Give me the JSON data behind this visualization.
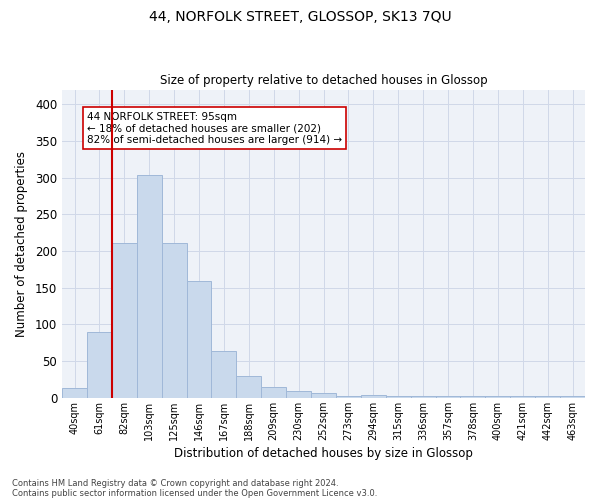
{
  "title": "44, NORFOLK STREET, GLOSSOP, SK13 7QU",
  "subtitle": "Size of property relative to detached houses in Glossop",
  "xlabel": "Distribution of detached houses by size in Glossop",
  "ylabel": "Number of detached properties",
  "categories": [
    "40sqm",
    "61sqm",
    "82sqm",
    "103sqm",
    "125sqm",
    "146sqm",
    "167sqm",
    "188sqm",
    "209sqm",
    "230sqm",
    "252sqm",
    "273sqm",
    "294sqm",
    "315sqm",
    "336sqm",
    "357sqm",
    "378sqm",
    "400sqm",
    "421sqm",
    "442sqm",
    "463sqm"
  ],
  "values": [
    14,
    90,
    211,
    303,
    211,
    159,
    64,
    30,
    15,
    9,
    6,
    2,
    4,
    2,
    3,
    3,
    2,
    3,
    2,
    3,
    2
  ],
  "bar_color": "#c9d9ec",
  "bar_edge_color": "#a0b8d8",
  "vline_color": "#cc0000",
  "annotation_text": "44 NORFOLK STREET: 95sqm\n← 18% of detached houses are smaller (202)\n82% of semi-detached houses are larger (914) →",
  "annotation_box_color": "#ffffff",
  "annotation_box_edge": "#cc0000",
  "ylim": [
    0,
    420
  ],
  "yticks": [
    0,
    50,
    100,
    150,
    200,
    250,
    300,
    350,
    400
  ],
  "grid_color": "#d0d8e8",
  "background_color": "#eef2f8",
  "footer1": "Contains HM Land Registry data © Crown copyright and database right 2024.",
  "footer2": "Contains public sector information licensed under the Open Government Licence v3.0."
}
